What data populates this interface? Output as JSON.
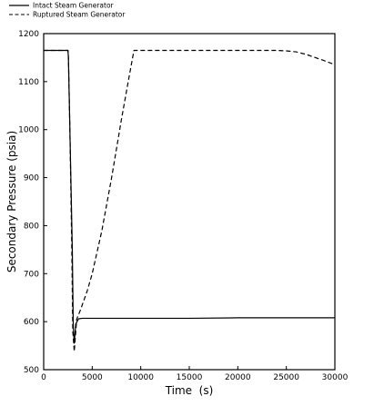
{
  "chart_data": {
    "type": "line",
    "title": "",
    "xlabel": "Time  (s)",
    "ylabel": "Secondary Pressure (psia)",
    "xlim": [
      0,
      30000
    ],
    "ylim": [
      500,
      1200
    ],
    "xticks": [
      0,
      5000,
      10000,
      15000,
      20000,
      25000,
      30000
    ],
    "yticks": [
      500,
      600,
      700,
      800,
      900,
      1000,
      1100,
      1200
    ],
    "grid": false,
    "legend_position": "top-left (above plot)",
    "series": [
      {
        "name": "Intact Steam Generator",
        "style": "solid",
        "color": "#000000",
        "x": [
          0,
          2500,
          2550,
          2650,
          2800,
          2950,
          3050,
          3150,
          3300,
          3600,
          4000,
          5000,
          10000,
          15000,
          20000,
          25000,
          30000
        ],
        "y": [
          1165,
          1165,
          1150,
          1050,
          900,
          750,
          590,
          555,
          595,
          606,
          607,
          607,
          607,
          607,
          608,
          608,
          608
        ]
      },
      {
        "name": "Ruptured Steam Generator",
        "style": "dashed",
        "color": "#000000",
        "x": [
          0,
          2500,
          2550,
          2700,
          2900,
          3000,
          3150,
          3400,
          3800,
          4500,
          5000,
          6000,
          7000,
          8000,
          8800,
          9300,
          10000,
          15000,
          20000,
          24000,
          25000,
          26000,
          27000,
          28000,
          29000,
          30000
        ],
        "y": [
          1165,
          1165,
          1150,
          1000,
          750,
          580,
          538,
          605,
          625,
          665,
          700,
          790,
          900,
          1020,
          1110,
          1165,
          1165,
          1165,
          1165,
          1165,
          1164,
          1162,
          1157,
          1150,
          1143,
          1135
        ]
      }
    ]
  }
}
